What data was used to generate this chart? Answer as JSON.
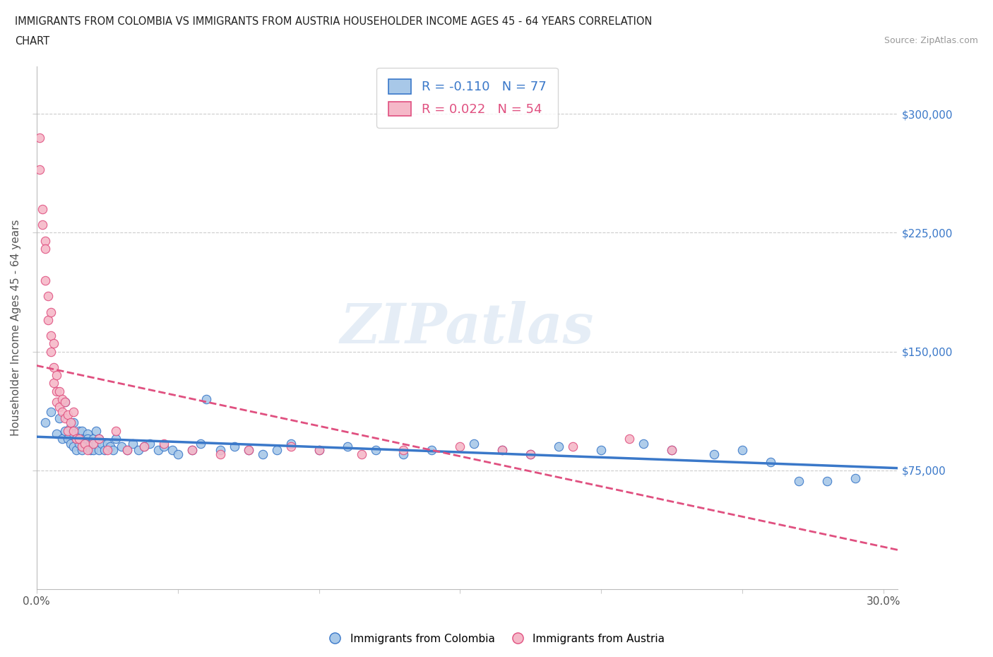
{
  "title_line1": "IMMIGRANTS FROM COLOMBIA VS IMMIGRANTS FROM AUSTRIA HOUSEHOLDER INCOME AGES 45 - 64 YEARS CORRELATION",
  "title_line2": "CHART",
  "source_text": "Source: ZipAtlas.com",
  "ylabel": "Householder Income Ages 45 - 64 years",
  "xlim": [
    0.0,
    0.305
  ],
  "ylim": [
    0,
    330000
  ],
  "xticks": [
    0.0,
    0.05,
    0.1,
    0.15,
    0.2,
    0.25,
    0.3
  ],
  "xticklabels": [
    "0.0%",
    "",
    "",
    "",
    "",
    "",
    "30.0%"
  ],
  "ytick_positions": [
    75000,
    150000,
    225000,
    300000
  ],
  "ytick_labels": [
    "$75,000",
    "$150,000",
    "$225,000",
    "$300,000"
  ],
  "gridline_y": [
    75000,
    150000,
    225000,
    300000
  ],
  "R_colombia": -0.11,
  "N_colombia": 77,
  "R_austria": 0.022,
  "N_austria": 54,
  "color_colombia": "#a8c8e8",
  "color_austria": "#f5b8c8",
  "line_color_colombia": "#3a78c9",
  "line_color_austria": "#e05080",
  "watermark": "ZIPatlas",
  "colombia_scatter_x": [
    0.003,
    0.005,
    0.007,
    0.008,
    0.009,
    0.01,
    0.01,
    0.011,
    0.012,
    0.012,
    0.013,
    0.013,
    0.013,
    0.014,
    0.014,
    0.015,
    0.015,
    0.015,
    0.016,
    0.016,
    0.016,
    0.017,
    0.017,
    0.018,
    0.018,
    0.018,
    0.019,
    0.019,
    0.02,
    0.02,
    0.021,
    0.021,
    0.022,
    0.022,
    0.023,
    0.024,
    0.025,
    0.026,
    0.027,
    0.028,
    0.03,
    0.032,
    0.034,
    0.036,
    0.038,
    0.04,
    0.043,
    0.045,
    0.048,
    0.05,
    0.055,
    0.058,
    0.06,
    0.065,
    0.07,
    0.075,
    0.08,
    0.085,
    0.09,
    0.1,
    0.11,
    0.12,
    0.13,
    0.14,
    0.155,
    0.165,
    0.175,
    0.185,
    0.2,
    0.215,
    0.225,
    0.24,
    0.25,
    0.26,
    0.27,
    0.28,
    0.29
  ],
  "colombia_scatter_y": [
    105000,
    112000,
    98000,
    108000,
    95000,
    118000,
    100000,
    95000,
    102000,
    92000,
    98000,
    90000,
    105000,
    95000,
    88000,
    100000,
    95000,
    92000,
    100000,
    95000,
    88000,
    95000,
    92000,
    98000,
    90000,
    95000,
    88000,
    92000,
    95000,
    88000,
    100000,
    92000,
    88000,
    95000,
    92000,
    88000,
    92000,
    90000,
    88000,
    95000,
    90000,
    88000,
    92000,
    88000,
    90000,
    92000,
    88000,
    90000,
    88000,
    85000,
    88000,
    92000,
    120000,
    88000,
    90000,
    88000,
    85000,
    88000,
    92000,
    88000,
    90000,
    88000,
    85000,
    88000,
    92000,
    88000,
    85000,
    90000,
    88000,
    92000,
    88000,
    85000,
    88000,
    80000,
    68000,
    68000,
    70000
  ],
  "austria_scatter_x": [
    0.001,
    0.001,
    0.002,
    0.002,
    0.003,
    0.003,
    0.003,
    0.004,
    0.004,
    0.005,
    0.005,
    0.005,
    0.006,
    0.006,
    0.006,
    0.007,
    0.007,
    0.007,
    0.008,
    0.008,
    0.009,
    0.009,
    0.01,
    0.01,
    0.011,
    0.011,
    0.012,
    0.013,
    0.013,
    0.014,
    0.015,
    0.016,
    0.017,
    0.018,
    0.02,
    0.022,
    0.025,
    0.028,
    0.032,
    0.038,
    0.045,
    0.055,
    0.065,
    0.075,
    0.09,
    0.1,
    0.115,
    0.13,
    0.15,
    0.165,
    0.175,
    0.19,
    0.21,
    0.225
  ],
  "austria_scatter_y": [
    285000,
    265000,
    240000,
    230000,
    220000,
    195000,
    215000,
    185000,
    170000,
    175000,
    160000,
    150000,
    155000,
    140000,
    130000,
    135000,
    125000,
    118000,
    115000,
    125000,
    112000,
    120000,
    108000,
    118000,
    100000,
    110000,
    105000,
    100000,
    112000,
    95000,
    95000,
    90000,
    92000,
    88000,
    92000,
    95000,
    88000,
    100000,
    88000,
    90000,
    92000,
    88000,
    85000,
    88000,
    90000,
    88000,
    85000,
    88000,
    90000,
    88000,
    85000,
    90000,
    95000,
    88000
  ]
}
